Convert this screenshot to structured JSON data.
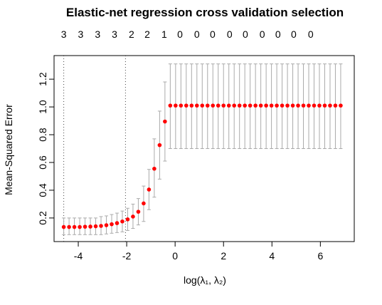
{
  "chart_data": {
    "type": "scatter",
    "title": "Elastic-net regression cross validation selection",
    "xlabel": "log(λ₁, λ₂)",
    "ylabel": "Mean-Squared Error",
    "xlim": [
      -5.0,
      7.4
    ],
    "ylim": [
      0.03,
      1.37
    ],
    "x_ticks": [
      -4,
      -2,
      0,
      2,
      4,
      6
    ],
    "y_ticks": [
      0.2,
      0.4,
      0.6,
      0.8,
      1.0,
      1.2
    ],
    "top_ticks_x": [
      -4.6,
      -3.9,
      -3.2,
      -2.5,
      -1.8,
      -1.15,
      -0.45,
      0.2,
      0.9,
      1.55,
      2.25,
      2.9,
      3.6,
      4.25,
      4.9,
      5.6
    ],
    "top_labels": [
      "3",
      "3",
      "3",
      "3",
      "2",
      "2",
      "1",
      "0",
      "0",
      "0",
      "0",
      "0",
      "0",
      "0",
      "0",
      "0"
    ],
    "vlines_x": [
      -4.6,
      -2.05
    ],
    "point_color": "#ff0000",
    "errorbar_color": "#aaaaaa",
    "points": [
      {
        "x": -4.6,
        "y": 0.135,
        "lo": 0.08,
        "hi": 0.2
      },
      {
        "x": -4.38,
        "y": 0.135,
        "lo": 0.08,
        "hi": 0.2
      },
      {
        "x": -4.16,
        "y": 0.135,
        "lo": 0.08,
        "hi": 0.2
      },
      {
        "x": -3.94,
        "y": 0.135,
        "lo": 0.08,
        "hi": 0.2
      },
      {
        "x": -3.72,
        "y": 0.137,
        "lo": 0.08,
        "hi": 0.2
      },
      {
        "x": -3.5,
        "y": 0.138,
        "lo": 0.08,
        "hi": 0.2
      },
      {
        "x": -3.28,
        "y": 0.14,
        "lo": 0.08,
        "hi": 0.2
      },
      {
        "x": -3.06,
        "y": 0.143,
        "lo": 0.08,
        "hi": 0.21
      },
      {
        "x": -2.84,
        "y": 0.148,
        "lo": 0.085,
        "hi": 0.215
      },
      {
        "x": -2.62,
        "y": 0.155,
        "lo": 0.09,
        "hi": 0.225
      },
      {
        "x": -2.4,
        "y": 0.163,
        "lo": 0.095,
        "hi": 0.235
      },
      {
        "x": -2.18,
        "y": 0.175,
        "lo": 0.1,
        "hi": 0.25
      },
      {
        "x": -1.96,
        "y": 0.19,
        "lo": 0.11,
        "hi": 0.27
      },
      {
        "x": -1.74,
        "y": 0.21,
        "lo": 0.125,
        "hi": 0.3
      },
      {
        "x": -1.52,
        "y": 0.245,
        "lo": 0.15,
        "hi": 0.34
      },
      {
        "x": -1.3,
        "y": 0.305,
        "lo": 0.175,
        "hi": 0.43
      },
      {
        "x": -1.08,
        "y": 0.405,
        "lo": 0.26,
        "hi": 0.55
      },
      {
        "x": -0.86,
        "y": 0.555,
        "lo": 0.35,
        "hi": 0.77
      },
      {
        "x": -0.64,
        "y": 0.725,
        "lo": 0.48,
        "hi": 0.97
      },
      {
        "x": -0.42,
        "y": 0.895,
        "lo": 0.61,
        "hi": 1.18
      },
      {
        "x": -0.2,
        "y": 1.01,
        "lo": 0.7,
        "hi": 1.31
      },
      {
        "x": 0.02,
        "y": 1.01,
        "lo": 0.7,
        "hi": 1.31
      },
      {
        "x": 0.24,
        "y": 1.01,
        "lo": 0.7,
        "hi": 1.31
      },
      {
        "x": 0.46,
        "y": 1.01,
        "lo": 0.7,
        "hi": 1.31
      },
      {
        "x": 0.68,
        "y": 1.01,
        "lo": 0.7,
        "hi": 1.31
      },
      {
        "x": 0.9,
        "y": 1.01,
        "lo": 0.7,
        "hi": 1.31
      },
      {
        "x": 1.12,
        "y": 1.01,
        "lo": 0.7,
        "hi": 1.31
      },
      {
        "x": 1.34,
        "y": 1.01,
        "lo": 0.7,
        "hi": 1.31
      },
      {
        "x": 1.56,
        "y": 1.01,
        "lo": 0.7,
        "hi": 1.31
      },
      {
        "x": 1.78,
        "y": 1.01,
        "lo": 0.7,
        "hi": 1.31
      },
      {
        "x": 2.0,
        "y": 1.01,
        "lo": 0.7,
        "hi": 1.31
      },
      {
        "x": 2.22,
        "y": 1.01,
        "lo": 0.7,
        "hi": 1.31
      },
      {
        "x": 2.44,
        "y": 1.01,
        "lo": 0.7,
        "hi": 1.31
      },
      {
        "x": 2.66,
        "y": 1.01,
        "lo": 0.7,
        "hi": 1.31
      },
      {
        "x": 2.88,
        "y": 1.01,
        "lo": 0.7,
        "hi": 1.31
      },
      {
        "x": 3.1,
        "y": 1.01,
        "lo": 0.7,
        "hi": 1.31
      },
      {
        "x": 3.32,
        "y": 1.01,
        "lo": 0.7,
        "hi": 1.31
      },
      {
        "x": 3.54,
        "y": 1.01,
        "lo": 0.7,
        "hi": 1.31
      },
      {
        "x": 3.76,
        "y": 1.01,
        "lo": 0.7,
        "hi": 1.31
      },
      {
        "x": 3.98,
        "y": 1.01,
        "lo": 0.7,
        "hi": 1.31
      },
      {
        "x": 4.2,
        "y": 1.01,
        "lo": 0.7,
        "hi": 1.31
      },
      {
        "x": 4.42,
        "y": 1.01,
        "lo": 0.7,
        "hi": 1.31
      },
      {
        "x": 4.64,
        "y": 1.01,
        "lo": 0.7,
        "hi": 1.31
      },
      {
        "x": 4.86,
        "y": 1.01,
        "lo": 0.7,
        "hi": 1.31
      },
      {
        "x": 5.08,
        "y": 1.01,
        "lo": 0.7,
        "hi": 1.31
      },
      {
        "x": 5.3,
        "y": 1.01,
        "lo": 0.7,
        "hi": 1.31
      },
      {
        "x": 5.52,
        "y": 1.01,
        "lo": 0.7,
        "hi": 1.31
      },
      {
        "x": 5.74,
        "y": 1.01,
        "lo": 0.7,
        "hi": 1.31
      },
      {
        "x": 5.96,
        "y": 1.01,
        "lo": 0.7,
        "hi": 1.31
      },
      {
        "x": 6.18,
        "y": 1.01,
        "lo": 0.7,
        "hi": 1.31
      },
      {
        "x": 6.4,
        "y": 1.01,
        "lo": 0.7,
        "hi": 1.31
      },
      {
        "x": 6.62,
        "y": 1.01,
        "lo": 0.7,
        "hi": 1.31
      },
      {
        "x": 6.84,
        "y": 1.01,
        "lo": 0.7,
        "hi": 1.31
      }
    ]
  }
}
